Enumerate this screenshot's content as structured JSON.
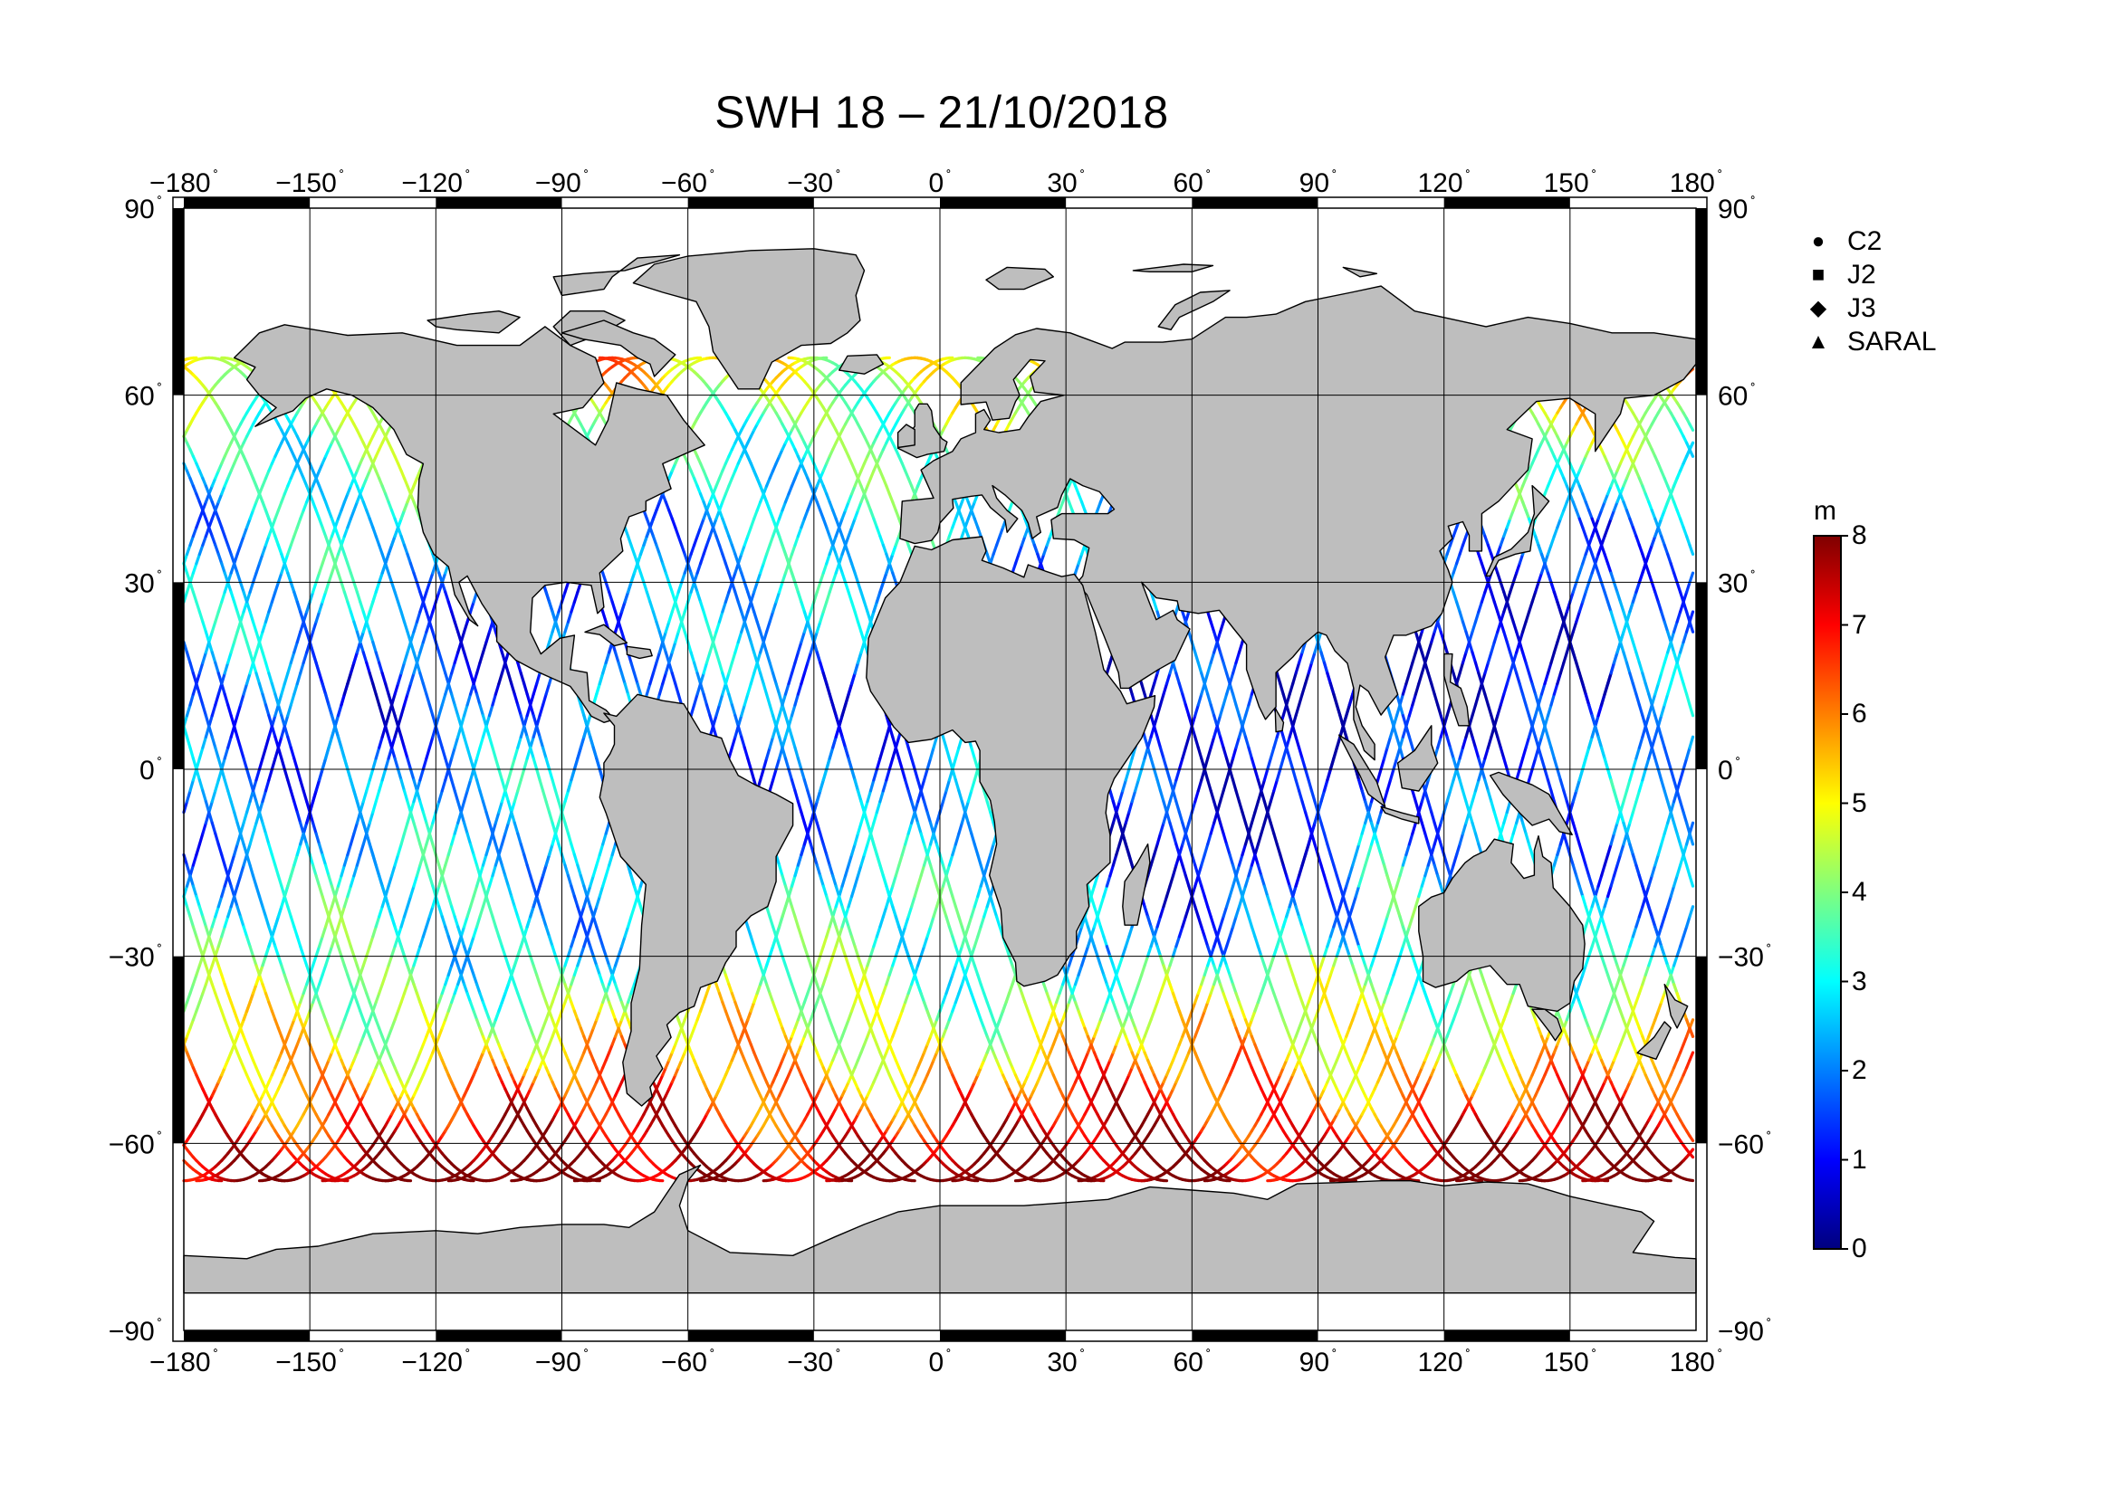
{
  "title": "SWH 18 – 21/10/2018",
  "map": {
    "lon_ticks": [
      "−180",
      "−150",
      "−120",
      "−90",
      "−60",
      "−30",
      "0",
      "30",
      "60",
      "90",
      "120",
      "150",
      "180"
    ],
    "lat_ticks": [
      "90",
      "60",
      "30",
      "0",
      "−30",
      "−60",
      "−90"
    ],
    "degree_symbol": "˚",
    "land_color": "#bebebe",
    "ocean_color": "#ffffff",
    "grid_color": "#000000"
  },
  "legend": {
    "items": [
      {
        "symbol": "●",
        "label": "C2"
      },
      {
        "symbol": "■",
        "label": "J2"
      },
      {
        "symbol": "◆",
        "label": "J3"
      },
      {
        "symbol": "▲",
        "label": "SARAL"
      }
    ]
  },
  "colorbar": {
    "unit": "m",
    "ticks": [
      "0",
      "1",
      "2",
      "3",
      "4",
      "5",
      "6",
      "7",
      "8"
    ],
    "min": 0,
    "max": 8,
    "colors": [
      "#00007f",
      "#0000ff",
      "#007fff",
      "#00ffff",
      "#7fff7f",
      "#ffff00",
      "#ff7f00",
      "#ff0000",
      "#7f0000"
    ]
  }
}
